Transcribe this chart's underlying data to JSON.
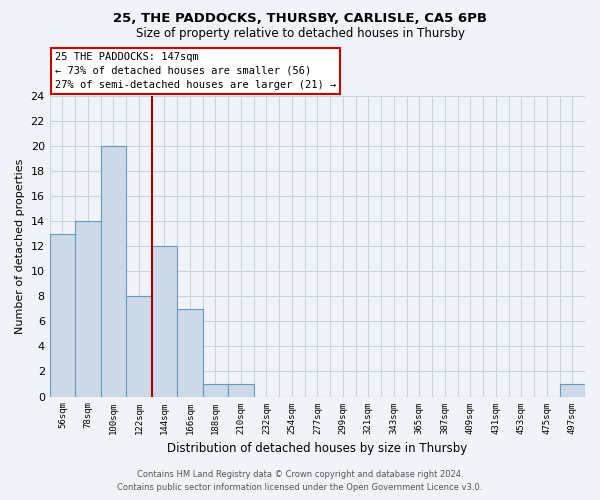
{
  "title1": "25, THE PADDOCKS, THURSBY, CARLISLE, CA5 6PB",
  "title2": "Size of property relative to detached houses in Thursby",
  "xlabel": "Distribution of detached houses by size in Thursby",
  "ylabel": "Number of detached properties",
  "bin_labels": [
    "56sqm",
    "78sqm",
    "100sqm",
    "122sqm",
    "144sqm",
    "166sqm",
    "188sqm",
    "210sqm",
    "232sqm",
    "254sqm",
    "277sqm",
    "299sqm",
    "321sqm",
    "343sqm",
    "365sqm",
    "387sqm",
    "409sqm",
    "431sqm",
    "453sqm",
    "475sqm",
    "497sqm"
  ],
  "bin_counts": [
    13,
    14,
    20,
    8,
    12,
    7,
    1,
    1,
    0,
    0,
    0,
    0,
    0,
    0,
    0,
    0,
    0,
    0,
    0,
    0,
    1
  ],
  "bar_color": "#ccd9e8",
  "bar_edge_color": "#6699bb",
  "property_line_x": 4,
  "property_line_color": "#aa0000",
  "annotation_title": "25 THE PADDOCKS: 147sqm",
  "annotation_line1": "← 73% of detached houses are smaller (56)",
  "annotation_line2": "27% of semi-detached houses are larger (21) →",
  "annotation_box_color": "#ffffff",
  "annotation_box_edge_color": "#cc0000",
  "ylim": [
    0,
    24
  ],
  "yticks": [
    0,
    2,
    4,
    6,
    8,
    10,
    12,
    14,
    16,
    18,
    20,
    22,
    24
  ],
  "footer1": "Contains HM Land Registry data © Crown copyright and database right 2024.",
  "footer2": "Contains public sector information licensed under the Open Government Licence v3.0.",
  "bg_color": "#f0f4f8",
  "grid_color": "#c8d4e0"
}
